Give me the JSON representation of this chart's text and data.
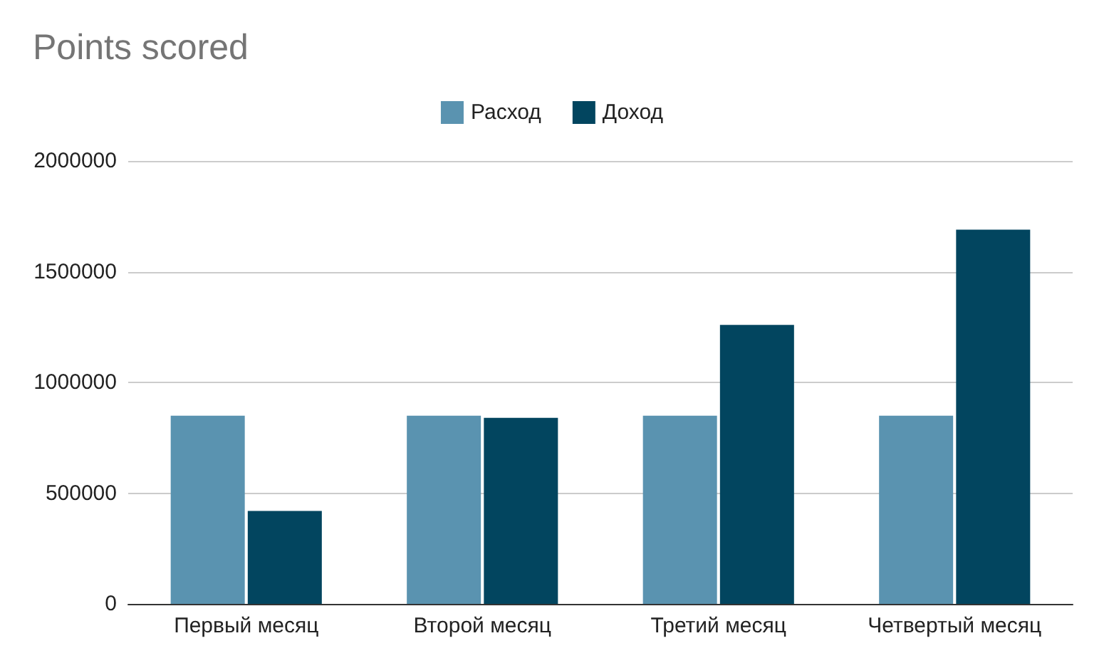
{
  "chart_data": {
    "type": "bar",
    "title": "Points scored",
    "categories": [
      "Первый месяц",
      "Второй месяц",
      "Третий месяц",
      "Четвертый месяц"
    ],
    "series": [
      {
        "name": "Расход",
        "color": "#5a93b0",
        "values": [
          850000,
          850000,
          850000,
          850000
        ]
      },
      {
        "name": "Доход",
        "color": "#02455f",
        "values": [
          420000,
          840000,
          1260000,
          1690000
        ]
      }
    ],
    "ylim": [
      0,
      2000000
    ],
    "yticks": [
      0,
      500000,
      1000000,
      1500000,
      2000000
    ],
    "grid": "y",
    "legend": "top"
  }
}
